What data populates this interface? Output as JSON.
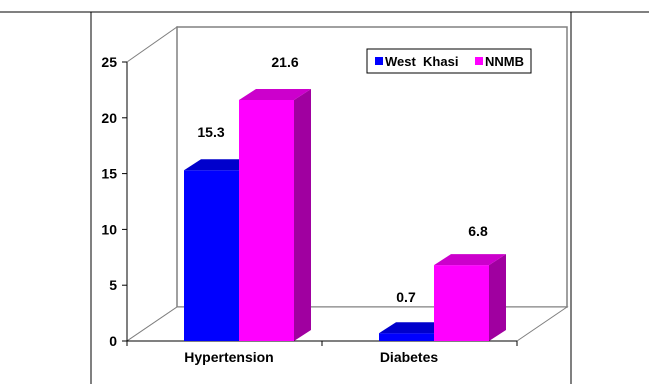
{
  "chart_data": {
    "type": "bar",
    "style": "3d-clustered-column",
    "categories": [
      "Hypertension",
      "Diabetes"
    ],
    "series": [
      {
        "name": "West  Khasi",
        "values": [
          15.3,
          0.7
        ],
        "color": "#0000ff",
        "side_color": "#000099",
        "top_color": "#0000cc"
      },
      {
        "name": "NNMB",
        "values": [
          21.6,
          6.8
        ],
        "color": "#ff00ff",
        "side_color": "#a000a0",
        "top_color": "#cc00cc"
      }
    ],
    "data_labels": [
      [
        "15.3",
        "0.7"
      ],
      [
        "21.6",
        "6.8"
      ]
    ],
    "ylim": [
      0,
      25
    ],
    "yticks": [
      "0",
      "5",
      "10",
      "15",
      "20",
      "25"
    ],
    "xlabel": "",
    "ylabel": "",
    "title": "",
    "grid": false,
    "legend_position": "top-right"
  }
}
